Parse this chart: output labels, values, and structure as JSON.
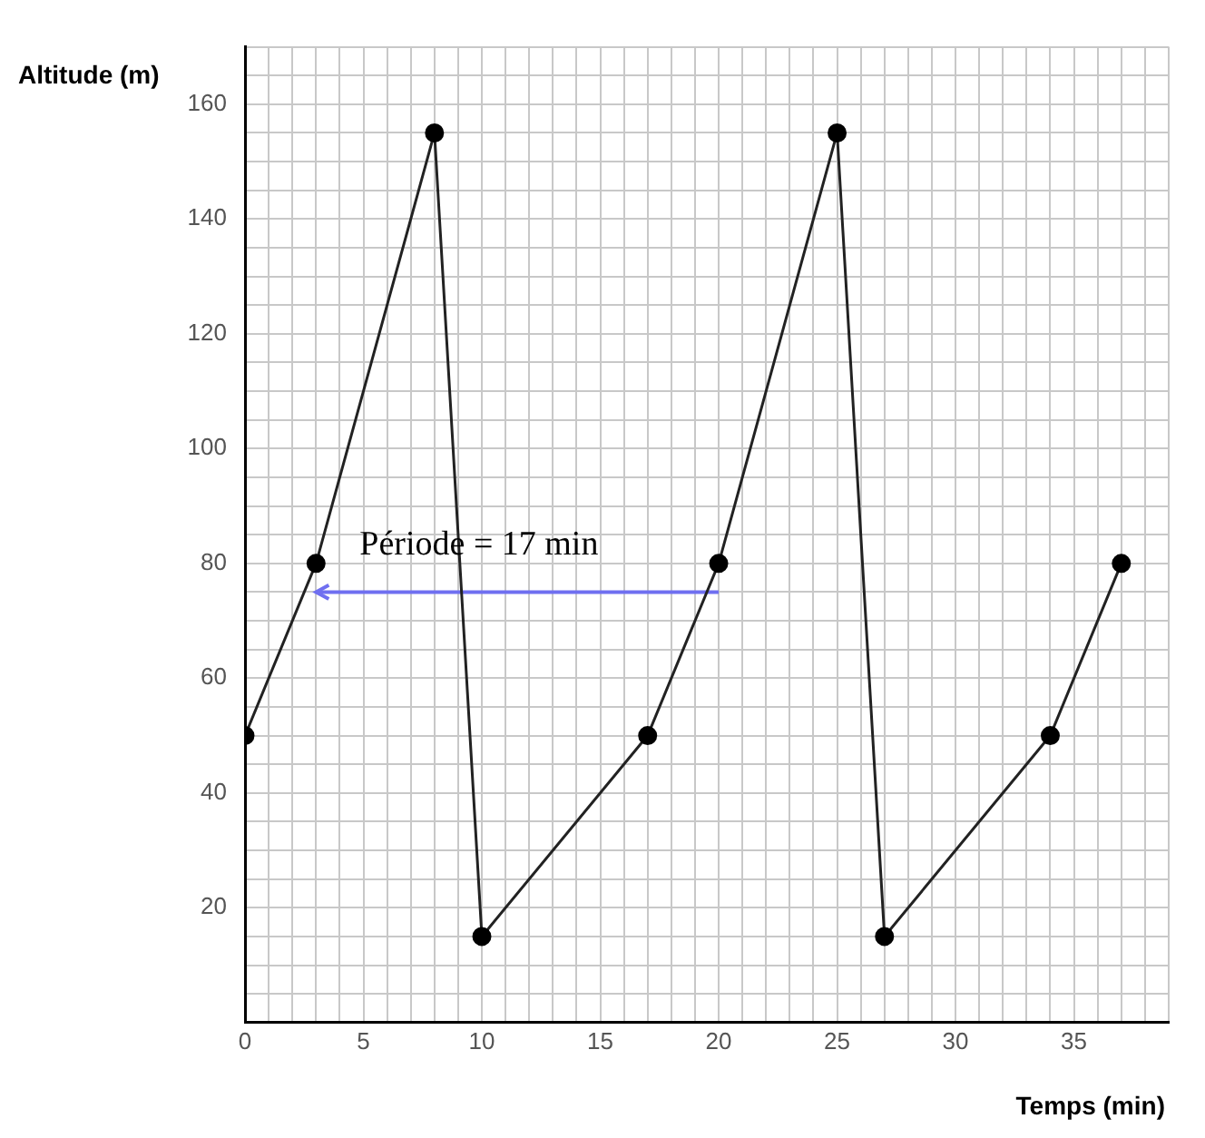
{
  "chart_data": {
    "type": "line",
    "xlabel": "Temps (min)",
    "ylabel": "Altitude (m)",
    "x": [
      0,
      3,
      8,
      10,
      17,
      20,
      25,
      27,
      34,
      37
    ],
    "series": [
      {
        "color": "#222222",
        "values": [
          50,
          80,
          155,
          15,
          50,
          80,
          155,
          15,
          50,
          80
        ]
      },
      {
        "type": "line",
        "color": "#6f6ff0",
        "x": [
          20,
          3
        ],
        "values": [
          75,
          75
        ],
        "marker": "none"
      }
    ],
    "annotations": [
      "Période = 17 min"
    ],
    "xlim": [
      0,
      39
    ],
    "ylim": [
      0,
      170
    ],
    "xticks": [
      0,
      {
        "value": 1,
        "label": null
      },
      {
        "value": 2,
        "label": null
      },
      {
        "value": 3,
        "label": null
      },
      {
        "value": 4,
        "label": null
      },
      5,
      {
        "value": 6,
        "label": null
      },
      {
        "value": 7,
        "label": null
      },
      {
        "value": 8,
        "label": null
      },
      {
        "value": 9,
        "label": null
      },
      10,
      {
        "value": 11,
        "label": null
      },
      {
        "value": 12,
        "label": null
      },
      {
        "value": 13,
        "label": null
      },
      {
        "value": 14,
        "label": null
      },
      15,
      {
        "value": 16,
        "label": null
      },
      {
        "value": 17,
        "label": null
      },
      {
        "value": 18,
        "label": null
      },
      {
        "value": 19,
        "label": null
      },
      20,
      {
        "value": 21,
        "label": null
      },
      {
        "value": 22,
        "label": null
      },
      {
        "value": 23,
        "label": null
      },
      {
        "value": 24,
        "label": null
      },
      25,
      {
        "value": 26,
        "label": null
      },
      {
        "value": 27,
        "label": null
      },
      {
        "value": 28,
        "label": null
      },
      {
        "value": 29,
        "label": null
      },
      30,
      {
        "value": 31,
        "label": null
      },
      {
        "value": 32,
        "label": null
      },
      {
        "value": 33,
        "label": null
      },
      {
        "value": 34,
        "label": null
      },
      35,
      {
        "value": 36,
        "label": null
      },
      {
        "value": 37,
        "label": null
      },
      {
        "value": 38,
        "label": null
      },
      {
        "value": 39,
        "label": null
      }
    ],
    "yticks": [
      {
        "value": 0,
        "label": null
      },
      {
        "value": 5,
        "label": null
      },
      {
        "value": 10,
        "label": null
      },
      {
        "value": 15,
        "label": null
      },
      20,
      {
        "value": 25,
        "label": null
      },
      {
        "value": 30,
        "label": null
      },
      {
        "value": 35,
        "label": null
      },
      40,
      {
        "value": 45,
        "label": null
      },
      {
        "value": 50,
        "label": null
      },
      {
        "value": 55,
        "label": null
      },
      60,
      {
        "value": 65,
        "label": null
      },
      {
        "value": 70,
        "label": null
      },
      {
        "value": 75,
        "label": null
      },
      80,
      {
        "value": 85,
        "label": null
      },
      {
        "value": 90,
        "label": null
      },
      {
        "value": 95,
        "label": null
      },
      100,
      {
        "value": 105,
        "label": null
      },
      {
        "value": 110,
        "label": null
      },
      {
        "value": 115,
        "label": null
      },
      120,
      {
        "value": 125,
        "label": null
      },
      {
        "value": 130,
        "label": null
      },
      {
        "value": 135,
        "label": null
      },
      140,
      {
        "value": 145,
        "label": null
      },
      {
        "value": 150,
        "label": null
      },
      {
        "value": 155,
        "label": null
      },
      160,
      {
        "value": 165,
        "label": null
      },
      {
        "value": 170,
        "label": null
      }
    ],
    "grid": true,
    "legend": false,
    "marker": "circle",
    "line_style": "solid"
  }
}
